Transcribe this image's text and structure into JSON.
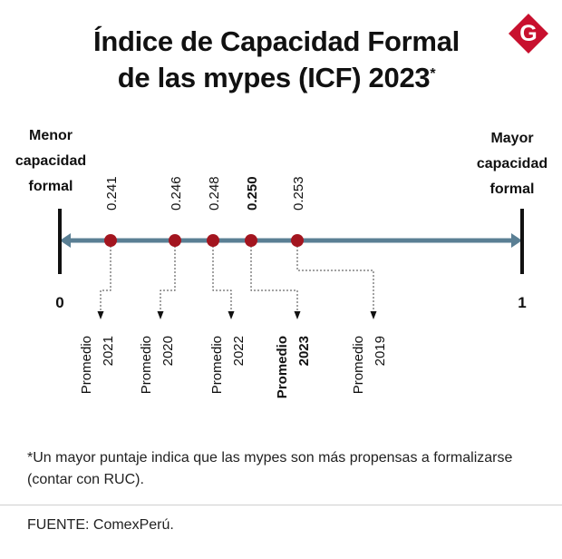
{
  "title": {
    "line1": "Índice de Capacidad Formal",
    "line2": "de las mypes (ICF) 2023",
    "asterisk": "*"
  },
  "logo": {
    "letter": "G",
    "color": "#c8102e"
  },
  "chart_data": {
    "type": "scatter",
    "axis": {
      "min": 0,
      "max": 1,
      "min_label": "0",
      "max_label": "1",
      "left_caption": [
        "Menor",
        "capacidad",
        "formal"
      ],
      "right_caption": [
        "Mayor",
        "capacidad",
        "formal"
      ]
    },
    "points": [
      {
        "value": 0.241,
        "label": "0.241",
        "year_label": [
          "Promedio",
          "2021"
        ],
        "highlight": false
      },
      {
        "value": 0.246,
        "label": "0.246",
        "year_label": [
          "Promedio",
          "2020"
        ],
        "highlight": false
      },
      {
        "value": 0.248,
        "label": "0.248",
        "year_label": [
          "Promedio",
          "2022"
        ],
        "highlight": false
      },
      {
        "value": 0.25,
        "label": "0.250",
        "year_label": [
          "Promedio",
          "2023"
        ],
        "highlight": true
      },
      {
        "value": 0.253,
        "label": "0.253",
        "year_label": [
          "Promedio",
          "2019"
        ],
        "highlight": false
      }
    ],
    "colors": {
      "axis_line": "#5a7f94",
      "point": "#a3151f",
      "end_bar": "#111111"
    }
  },
  "footnote": "*Un mayor puntaje indica que las mypes son más propensas a formalizarse (contar con RUC).",
  "source": "FUENTE: ComexPerú."
}
